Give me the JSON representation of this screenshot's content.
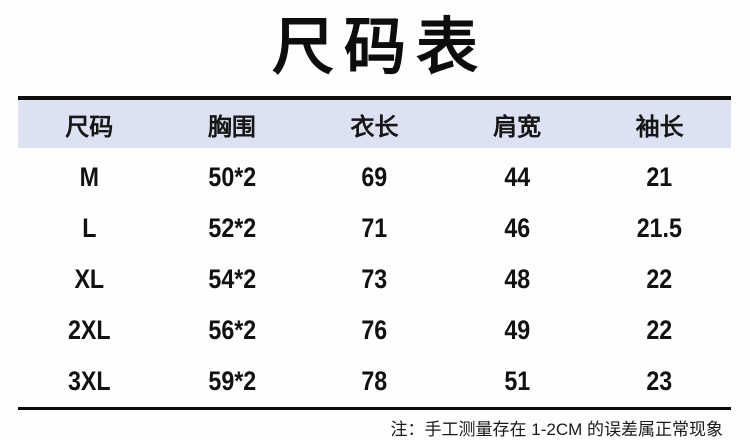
{
  "title": "尺码表",
  "table": {
    "headers": [
      "尺码",
      "胸围",
      "衣长",
      "肩宽",
      "袖长"
    ],
    "rows": [
      [
        "M",
        "50*2",
        "69",
        "44",
        "21"
      ],
      [
        "L",
        "52*2",
        "71",
        "46",
        "21.5"
      ],
      [
        "XL",
        "54*2",
        "73",
        "48",
        "22"
      ],
      [
        "2XL",
        "56*2",
        "76",
        "49",
        "22"
      ],
      [
        "3XL",
        "59*2",
        "78",
        "51",
        "23"
      ]
    ]
  },
  "note": "注：手工测量存在 1-2CM 的误差属正常现象",
  "colors": {
    "header_bg": "#dce2f1",
    "rule": "#0d0d0d",
    "text": "#111111",
    "background": "#ffffff"
  }
}
